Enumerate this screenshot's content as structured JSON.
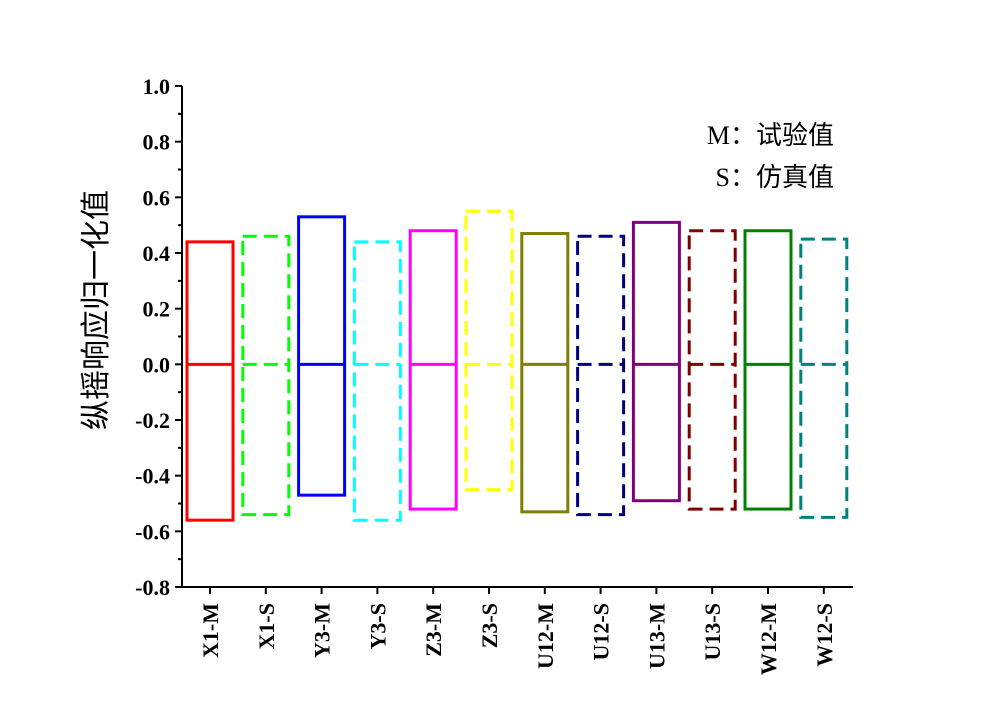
{
  "chart_data": {
    "type": "box",
    "ylabel": "纵摇响应归一化值",
    "ylim": [
      -0.8,
      1.0
    ],
    "yticks": [
      -0.8,
      -0.6,
      -0.4,
      -0.2,
      0.0,
      0.2,
      0.4,
      0.6,
      0.8,
      1.0
    ],
    "ytick_labels": [
      "-0.8",
      "-0.6",
      "-0.4",
      "-0.2",
      "0.0",
      "0.2",
      "0.4",
      "0.6",
      "0.8",
      "1.0"
    ],
    "categories": [
      "X1-M",
      "X1-S",
      "Y3-M",
      "Y3-S",
      "Z3-M",
      "Z3-S",
      "U12-M",
      "U12-S",
      "U13-M",
      "U13-S",
      "W12-M",
      "W12-S"
    ],
    "boxes": [
      {
        "top": 0.44,
        "bottom": -0.56,
        "mid": 0.0,
        "color": "#ff0000",
        "dashed": false
      },
      {
        "top": 0.46,
        "bottom": -0.54,
        "mid": 0.0,
        "color": "#00ff00",
        "dashed": true
      },
      {
        "top": 0.53,
        "bottom": -0.47,
        "mid": 0.0,
        "color": "#0000ff",
        "dashed": false
      },
      {
        "top": 0.44,
        "bottom": -0.56,
        "mid": 0.0,
        "color": "#00ffff",
        "dashed": true
      },
      {
        "top": 0.48,
        "bottom": -0.52,
        "mid": 0.0,
        "color": "#ff00ff",
        "dashed": false
      },
      {
        "top": 0.55,
        "bottom": -0.45,
        "mid": 0.0,
        "color": "#ffff00",
        "dashed": true
      },
      {
        "top": 0.47,
        "bottom": -0.53,
        "mid": 0.0,
        "color": "#808000",
        "dashed": false
      },
      {
        "top": 0.46,
        "bottom": -0.54,
        "mid": 0.0,
        "color": "#000080",
        "dashed": true
      },
      {
        "top": 0.51,
        "bottom": -0.49,
        "mid": 0.0,
        "color": "#800080",
        "dashed": false
      },
      {
        "top": 0.48,
        "bottom": -0.52,
        "mid": 0.0,
        "color": "#800000",
        "dashed": true
      },
      {
        "top": 0.48,
        "bottom": -0.52,
        "mid": 0.0,
        "color": "#008000",
        "dashed": false
      },
      {
        "top": 0.45,
        "bottom": -0.55,
        "mid": 0.0,
        "color": "#008080",
        "dashed": true
      }
    ],
    "annotations": [
      "M：试验值",
      "S：仿真值"
    ],
    "grid": false
  }
}
